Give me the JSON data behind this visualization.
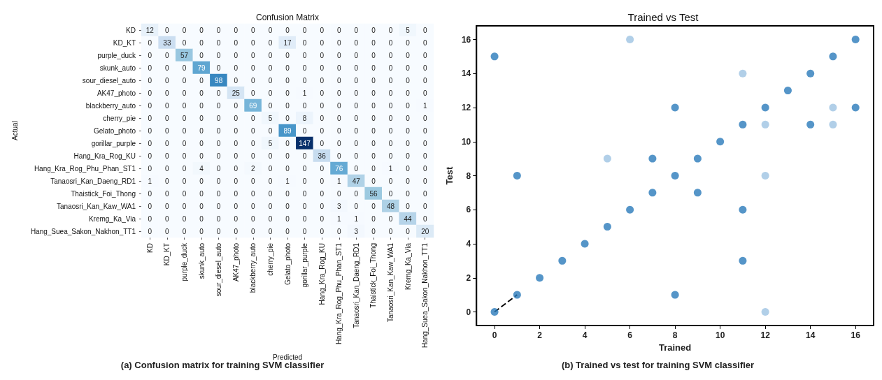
{
  "chart_data": [
    {
      "type": "heatmap",
      "title": "Confusion Matrix",
      "xlabel": "Predicted",
      "ylabel": "Actual",
      "annotations": [
        "(a) Confusion matrix for training SVM classifier"
      ],
      "categories": [
        "KD",
        "KD_KT",
        "purple_duck",
        "skunk_auto",
        "sour_diesel_auto",
        "AK47_photo",
        "blackberry_auto",
        "cherry_pie",
        "Gelato_photo",
        "gorillar_purple",
        "Hang_Kra_Rog_KU",
        "Hang_Kra_Rog_Phu_Phan_ST1",
        "Tanaosri_Kan_Daeng_RD1",
        "Thaistick_Foi_Thong",
        "Tanaosri_Kan_Kaw_WA1",
        "Kremg_Ka_Via",
        "Hang_Suea_Sakon_Nakhon_TT1"
      ],
      "y_categories": [
        "KD",
        "KD_KT",
        "purple_duck",
        "skunk_auto",
        "sour_diesel_auto",
        "AK47_photo",
        "blackberry_auto",
        "cherry_pie",
        "Gelato_photo",
        "gorillar_purple",
        "Hang_Kra_Rog_KU",
        "Hang_Kra_Rog_Phu_Phan_ST1",
        "Tanaosri_Kan_Daeng_RD1",
        "Thaistick_Foi_Thong",
        "Tanaosri_Kan_Kaw_WA1",
        "Kremg_Ka_Via",
        "Hang_Suea_Sakon_Nakhon_TT1"
      ],
      "cells": [
        [
          12,
          0,
          0,
          0,
          0,
          0,
          0,
          0,
          0,
          0,
          0,
          0,
          0,
          0,
          0,
          5,
          0
        ],
        [
          0,
          33,
          0,
          0,
          0,
          0,
          0,
          0,
          17,
          0,
          0,
          0,
          0,
          0,
          0,
          0,
          0
        ],
        [
          0,
          0,
          57,
          0,
          0,
          0,
          0,
          0,
          0,
          0,
          0,
          0,
          0,
          0,
          0,
          0,
          0
        ],
        [
          0,
          0,
          0,
          79,
          0,
          0,
          0,
          0,
          0,
          0,
          0,
          0,
          0,
          0,
          0,
          0,
          0
        ],
        [
          0,
          0,
          0,
          0,
          98,
          0,
          0,
          0,
          0,
          0,
          0,
          0,
          0,
          0,
          0,
          0,
          0
        ],
        [
          0,
          0,
          0,
          0,
          0,
          25,
          0,
          0,
          0,
          1,
          0,
          0,
          0,
          0,
          0,
          0,
          0
        ],
        [
          0,
          0,
          0,
          0,
          0,
          0,
          69,
          0,
          0,
          0,
          0,
          0,
          0,
          0,
          0,
          0,
          1
        ],
        [
          0,
          0,
          0,
          0,
          0,
          0,
          0,
          5,
          0,
          8,
          0,
          0,
          0,
          0,
          0,
          0,
          0
        ],
        [
          0,
          0,
          0,
          0,
          0,
          0,
          0,
          0,
          89,
          0,
          0,
          0,
          0,
          0,
          0,
          0,
          0
        ],
        [
          0,
          0,
          0,
          0,
          0,
          0,
          0,
          5,
          0,
          147,
          0,
          0,
          0,
          0,
          0,
          0,
          0
        ],
        [
          0,
          0,
          0,
          0,
          0,
          0,
          0,
          0,
          0,
          0,
          36,
          0,
          0,
          0,
          0,
          0,
          0
        ],
        [
          0,
          0,
          0,
          4,
          0,
          0,
          2,
          0,
          0,
          0,
          0,
          76,
          0,
          0,
          1,
          0,
          0
        ],
        [
          1,
          0,
          0,
          0,
          0,
          0,
          0,
          0,
          1,
          0,
          0,
          1,
          47,
          0,
          0,
          0,
          0
        ],
        [
          0,
          0,
          0,
          0,
          0,
          0,
          0,
          0,
          0,
          0,
          0,
          0,
          0,
          56,
          0,
          0,
          0
        ],
        [
          0,
          0,
          0,
          0,
          0,
          0,
          0,
          0,
          0,
          0,
          0,
          3,
          0,
          0,
          48,
          0,
          0
        ],
        [
          0,
          0,
          0,
          0,
          0,
          0,
          0,
          0,
          0,
          0,
          0,
          1,
          1,
          0,
          0,
          44,
          0
        ],
        [
          0,
          0,
          0,
          0,
          0,
          0,
          0,
          0,
          0,
          0,
          0,
          0,
          3,
          0,
          0,
          0,
          20
        ]
      ],
      "data_labels": true
    },
    {
      "type": "scatter",
      "title": "Trained vs Test",
      "xlabel": "Trained",
      "ylabel": "Test",
      "annotations": [
        "(b) Trained vs test for training SVM classifier"
      ],
      "xlim": [
        -0.8,
        16.8
      ],
      "ylim": [
        -0.8,
        16.8
      ],
      "xticks": [
        0,
        2,
        4,
        6,
        8,
        10,
        12,
        14,
        16
      ],
      "yticks": [
        0,
        2,
        4,
        6,
        8,
        10,
        12,
        14,
        16
      ],
      "grid": false,
      "marker": "circle",
      "series": [
        {
          "color": "#2b7bba",
          "x": [
            0,
            1,
            8,
            7,
            9,
            8,
            7,
            9,
            6,
            5,
            4,
            3,
            2,
            1,
            0,
            8,
            11,
            11,
            10,
            11,
            12,
            13,
            14,
            14,
            15,
            16,
            16
          ],
          "values": [
            15,
            8,
            12,
            9,
            9,
            8,
            7,
            7,
            6,
            5,
            4,
            3,
            2,
            1,
            0,
            1,
            6,
            3,
            10,
            11,
            12,
            13,
            14,
            11,
            15,
            16,
            12
          ]
        },
        {
          "color": "#9dc3e2",
          "x": [
            6,
            11,
            5,
            12,
            12,
            15,
            15,
            12
          ],
          "values": [
            16,
            14,
            9,
            11,
            8,
            12,
            11,
            0
          ]
        },
        {
          "type": "line",
          "color": "#000000",
          "line_style": "dashed",
          "marker": "none",
          "x": [
            0,
            1
          ],
          "values": [
            0,
            1
          ]
        }
      ]
    }
  ]
}
